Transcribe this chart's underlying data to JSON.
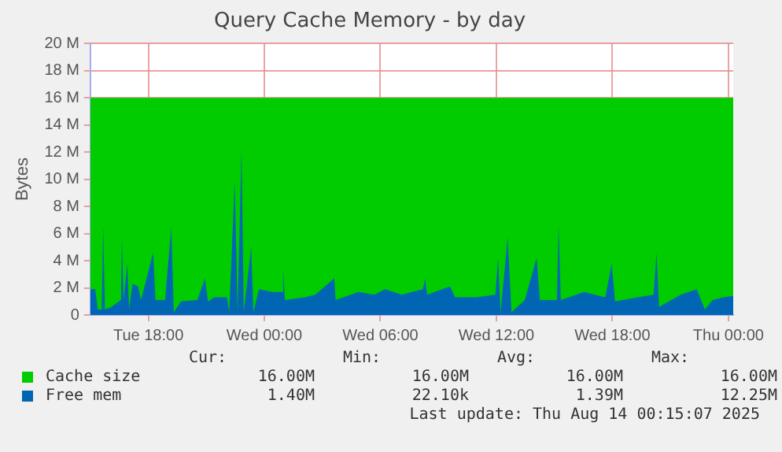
{
  "chart_data": {
    "type": "area",
    "title": "Query Cache Memory - by day",
    "ylabel": "Bytes",
    "xlim": [
      "2025-08-12T15:00",
      "2025-08-14T00:15"
    ],
    "xticks": [
      {
        "value": "2025-08-12T18:00",
        "label": "Tue 18:00"
      },
      {
        "value": "2025-08-13T00:00",
        "label": "Wed 00:00"
      },
      {
        "value": "2025-08-13T06:00",
        "label": "Wed 06:00"
      },
      {
        "value": "2025-08-13T12:00",
        "label": "Wed 12:00"
      },
      {
        "value": "2025-08-13T18:00",
        "label": "Wed 18:00"
      },
      {
        "value": "2025-08-14T00:00",
        "label": "Thu 00:00"
      }
    ],
    "ylim": [
      0,
      20
    ],
    "yticks": [
      0,
      {
        "value": 2,
        "label": "2 M"
      },
      {
        "value": 4,
        "label": "4 M"
      },
      {
        "value": 6,
        "label": "6 M"
      },
      {
        "value": 8,
        "label": "8 M"
      },
      {
        "value": 10,
        "label": "10 M"
      },
      {
        "value": 12,
        "label": "12 M"
      },
      {
        "value": 14,
        "label": "14 M"
      },
      {
        "value": 16,
        "label": "16 M"
      },
      {
        "value": 18,
        "label": "18 M"
      },
      {
        "value": 20,
        "label": "20 M"
      }
    ],
    "grid": true,
    "legend": "bottom left",
    "series": [
      {
        "name": "Cache size",
        "color": "#00cc00",
        "x": [
          "2025-08-12T15:00",
          "2025-08-14T00:15"
        ],
        "values": [
          16,
          16
        ]
      },
      {
        "name": "Free mem",
        "color": "#0066b3",
        "x": [
          "2025-08-12T15:00",
          "2025-08-12T15:15",
          "2025-08-12T15:23",
          "2025-08-12T15:35",
          "2025-08-12T15:40",
          "2025-08-12T15:45",
          "2025-08-12T16:05",
          "2025-08-12T16:35",
          "2025-08-12T16:38",
          "2025-08-12T16:43",
          "2025-08-12T16:55",
          "2025-08-12T17:00",
          "2025-08-12T17:11",
          "2025-08-12T17:28",
          "2025-08-12T17:37",
          "2025-08-12T18:15",
          "2025-08-12T18:22",
          "2025-08-12T18:52",
          "2025-08-12T19:11",
          "2025-08-12T19:19",
          "2025-08-12T19:41",
          "2025-08-12T20:32",
          "2025-08-12T20:56",
          "2025-08-12T21:05",
          "2025-08-12T21:25",
          "2025-08-12T22:04",
          "2025-08-12T22:11",
          "2025-08-12T22:28",
          "2025-08-12T22:37",
          "2025-08-12T22:49",
          "2025-08-12T22:56",
          "2025-08-12T23:19",
          "2025-08-12T23:26",
          "2025-08-12T23:43",
          "2025-08-13T00:25",
          "2025-08-13T00:55",
          "2025-08-13T00:58",
          "2025-08-13T01:04",
          "2025-08-13T02:05",
          "2025-08-13T02:38",
          "2025-08-13T03:37",
          "2025-08-13T03:41",
          "2025-08-13T04:52",
          "2025-08-13T05:41",
          "2025-08-13T06:15",
          "2025-08-13T07:05",
          "2025-08-13T08:12",
          "2025-08-13T08:19",
          "2025-08-13T08:25",
          "2025-08-13T09:36",
          "2025-08-13T09:52",
          "2025-08-13T10:58",
          "2025-08-13T11:57",
          "2025-08-13T12:05",
          "2025-08-13T12:13",
          "2025-08-13T12:35",
          "2025-08-13T12:47",
          "2025-08-13T13:28",
          "2025-08-13T14:05",
          "2025-08-13T14:15",
          "2025-08-13T15:08",
          "2025-08-13T15:13",
          "2025-08-13T15:20",
          "2025-08-13T16:32",
          "2025-08-13T17:38",
          "2025-08-13T17:58",
          "2025-08-13T18:08",
          "2025-08-13T19:19",
          "2025-08-13T20:08",
          "2025-08-13T20:17",
          "2025-08-13T20:25",
          "2025-08-13T21:32",
          "2025-08-13T22:22",
          "2025-08-13T22:47",
          "2025-08-13T23:11",
          "2025-08-13T23:45",
          "2025-08-14T00:15"
        ],
        "values": [
          1.9,
          1.9,
          0.4,
          0.4,
          6.5,
          0.4,
          0.6,
          1.1,
          5.7,
          1.1,
          3.8,
          0.4,
          2.3,
          2.1,
          1.1,
          4.6,
          1.1,
          1.1,
          6.5,
          0.2,
          1.0,
          1.1,
          2.7,
          1.0,
          1.3,
          1.3,
          0.2,
          9.9,
          0.2,
          12.2,
          0.2,
          5.0,
          0.2,
          1.9,
          1.7,
          1.7,
          3.4,
          1.1,
          1.3,
          1.5,
          2.7,
          1.1,
          1.7,
          1.5,
          1.9,
          1.5,
          1.9,
          2.7,
          1.5,
          2.1,
          1.3,
          1.3,
          1.5,
          4.2,
          0.2,
          5.7,
          0.2,
          1.1,
          4.2,
          1.1,
          1.1,
          6.5,
          1.1,
          1.7,
          1.3,
          3.8,
          1.0,
          1.3,
          1.5,
          4.6,
          0.6,
          1.5,
          1.9,
          0.4,
          1.1,
          1.3,
          1.4
        ]
      }
    ],
    "annotations": [
      "Cur:",
      "Min:",
      "Avg:",
      "Max:",
      "16.00M",
      "16.00M",
      "16.00M",
      "16.00M",
      "1.40M",
      "22.10k",
      "1.39M",
      "12.25M",
      "Last update: Thu Aug 14 00:15:07 2025"
    ]
  }
}
